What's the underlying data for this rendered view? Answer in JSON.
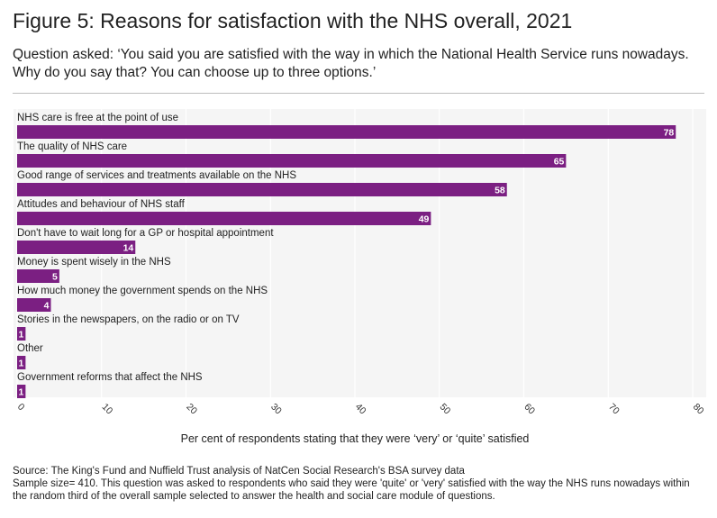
{
  "chart_data": {
    "type": "bar",
    "orientation": "horizontal",
    "title": "Figure 5: Reasons for satisfaction with the NHS overall, 2021",
    "subtitle": "Question asked: ‘You said you are satisfied with the way in which the National Health Service runs nowadays. Why do you say that? You can choose up to three options.’",
    "categories": [
      "NHS care is free at the point of use",
      "The quality of NHS care",
      "Good range of services and treatments available on the NHS",
      "Attitudes and behaviour of NHS staff",
      "Don't have to wait long for a GP or hospital appointment",
      "Money is spent wisely in the NHS",
      "How much money the government spends on the NHS",
      "Stories in the newspapers, on the radio or on TV",
      "Other",
      "Government reforms that affect the NHS"
    ],
    "values": [
      78,
      65,
      58,
      49,
      14,
      5,
      4,
      1,
      1,
      1
    ],
    "data_labels": [
      "78",
      "65",
      "58",
      "49",
      "14",
      "5",
      "4",
      "1",
      "1",
      "1"
    ],
    "xlabel": "Per cent of respondents stating that they were ‘very’ or ‘quite’ satisfied",
    "xlim": [
      0,
      80
    ],
    "xticks": [
      0,
      10,
      20,
      30,
      40,
      50,
      60,
      70,
      80
    ],
    "xtick_labels": [
      "0",
      "10",
      "20",
      "30",
      "40",
      "50",
      "60",
      "70",
      "80"
    ],
    "grid": true,
    "bar_color": "#7b1f82",
    "plot_background": "#f5f5f5"
  },
  "footer": {
    "source": "Source: The King's Fund and Nuffield Trust analysis of NatCen Social Research's BSA survey data",
    "note": "Sample size= 410. This question was asked to respondents who said they were 'quite' or 'very' satisfied with the way the NHS runs nowadays within the random third of the overall sample selected to answer the health and social care module of questions."
  }
}
